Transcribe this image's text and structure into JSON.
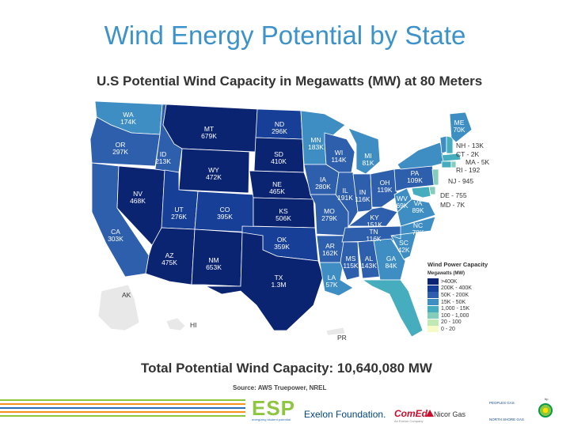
{
  "slide": {
    "title": "Wind Energy Potential by State"
  },
  "map": {
    "title": "U.S Potential Wind Capacity in Megawatts (MW) at 80 Meters",
    "states": [
      {
        "code": "WA",
        "value": "174K"
      },
      {
        "code": "OR",
        "value": "297K"
      },
      {
        "code": "CA",
        "value": "303K"
      },
      {
        "code": "NV",
        "value": "468K"
      },
      {
        "code": "ID",
        "value": "213K"
      },
      {
        "code": "MT",
        "value": "679K"
      },
      {
        "code": "WY",
        "value": "472K"
      },
      {
        "code": "UT",
        "value": "276K"
      },
      {
        "code": "AZ",
        "value": "475K"
      },
      {
        "code": "CO",
        "value": "395K"
      },
      {
        "code": "NM",
        "value": "653K"
      },
      {
        "code": "ND",
        "value": "296K"
      },
      {
        "code": "SD",
        "value": "410K"
      },
      {
        "code": "NE",
        "value": "465K"
      },
      {
        "code": "KS",
        "value": "506K"
      },
      {
        "code": "OK",
        "value": "359K"
      },
      {
        "code": "TX",
        "value": "1.3M"
      },
      {
        "code": "MN",
        "value": "183K"
      },
      {
        "code": "IA",
        "value": "280K"
      },
      {
        "code": "MO",
        "value": "279K"
      },
      {
        "code": "AR",
        "value": "162K"
      },
      {
        "code": "LA",
        "value": "57K"
      },
      {
        "code": "WI",
        "value": "114K"
      },
      {
        "code": "IL",
        "value": "191K"
      },
      {
        "code": "MI",
        "value": "81K"
      },
      {
        "code": "IN",
        "value": "116K"
      },
      {
        "code": "OH",
        "value": "119K"
      },
      {
        "code": "KY",
        "value": "151K"
      },
      {
        "code": "TN",
        "value": "116K"
      },
      {
        "code": "MS",
        "value": "115K"
      },
      {
        "code": "AL",
        "value": "143K"
      },
      {
        "code": "GA",
        "value": "84K"
      },
      {
        "code": "FL",
        "value": "30K"
      },
      {
        "code": "SC",
        "value": "42K"
      },
      {
        "code": "NC",
        "value": "78K"
      },
      {
        "code": "VA",
        "value": "89K"
      },
      {
        "code": "WV",
        "value": "69K"
      },
      {
        "code": "PA",
        "value": "109K"
      },
      {
        "code": "NY",
        "value": "92K"
      },
      {
        "code": "VT",
        "value": "22K"
      },
      {
        "code": "ME",
        "value": "70K"
      }
    ],
    "small_states": [
      {
        "code": "NH",
        "value": "13K",
        "text": "NH - 13K"
      },
      {
        "code": "CT",
        "value": "2K",
        "text": "CT - 2K"
      },
      {
        "code": "MA",
        "value": "5K",
        "text": "MA - 5K"
      },
      {
        "code": "RI",
        "value": "192",
        "text": "RI - 192"
      },
      {
        "code": "NJ",
        "value": "945",
        "text": "NJ - 945"
      },
      {
        "code": "DE",
        "value": "755",
        "text": "DE - 755"
      },
      {
        "code": "MD",
        "value": "7K",
        "text": "MD - 7K"
      }
    ],
    "unlabeled": [
      "AK",
      "HI",
      "PR"
    ],
    "territory_labels": [
      {
        "code": "AK",
        "text": "AK"
      },
      {
        "code": "HI",
        "text": "HI"
      },
      {
        "code": "PR",
        "text": "PR"
      }
    ],
    "legend": {
      "title": "Wind Power Capacity",
      "subtitle": "Megawatts (MW)",
      "items": [
        {
          "label": ">400K",
          "color": "#0b2472"
        },
        {
          "label": "200K - 400K",
          "color": "#173f98"
        },
        {
          "label": "50K - 200K",
          "color": "#2e5fad"
        },
        {
          "label": "15K - 50K",
          "color": "#3e8ec4"
        },
        {
          "label": "1,000 - 15K",
          "color": "#46adbf"
        },
        {
          "label": "100 - 1,000",
          "color": "#84cdbb"
        },
        {
          "label": "20 - 100",
          "color": "#c2e8b5"
        },
        {
          "label": "0 - 20",
          "color": "#f6fbc8"
        }
      ]
    }
  },
  "total": {
    "text": "Total Potential Wind Capacity: 10,640,080 MW"
  },
  "source": {
    "text": "Source: AWS Truepower, NREL"
  },
  "footer": {
    "stripe_colors": [
      "#8dc63f",
      "#f7941d",
      "#2a6db5",
      "#f7941d",
      "#8dc63f"
    ],
    "esp": "ESP",
    "esp_sub": "energizing student potential",
    "exelon": "Exelon Foundation.",
    "comed": "ComEd.",
    "comed_sub": "An Exelon Company",
    "nicor": "Nicor Gas",
    "logo_top": "PEOPLES GAS",
    "logo_bottom": "NORTH SHORE GAS",
    "bp_label": "bp"
  }
}
